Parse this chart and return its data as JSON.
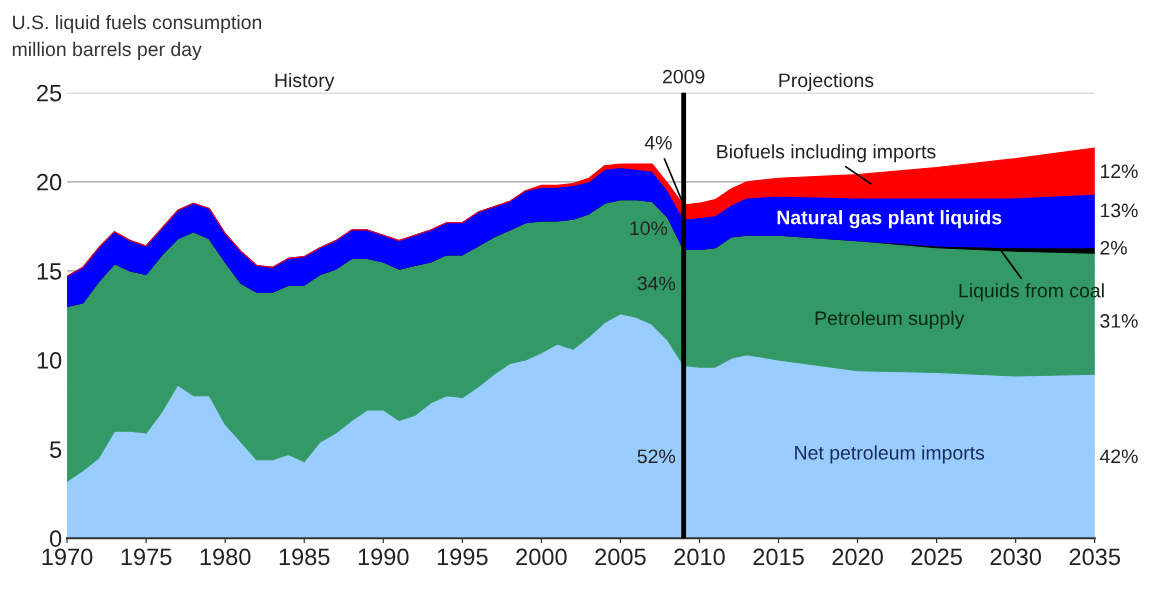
{
  "chart_data": {
    "type": "area",
    "stacked": true,
    "title": "U.S. liquid fuels consumption",
    "subtitle": "million barrels per day",
    "x": [
      1970,
      1971,
      1972,
      1973,
      1974,
      1975,
      1976,
      1977,
      1978,
      1979,
      1980,
      1981,
      1982,
      1983,
      1984,
      1985,
      1986,
      1987,
      1988,
      1989,
      1990,
      1991,
      1992,
      1993,
      1994,
      1995,
      1996,
      1997,
      1998,
      1999,
      2000,
      2001,
      2002,
      2003,
      2004,
      2005,
      2006,
      2007,
      2008,
      2009,
      2010,
      2011,
      2012,
      2013,
      2015,
      2020,
      2025,
      2030,
      2035
    ],
    "series": [
      {
        "name": "Net petroleum imports",
        "color": "#99ccff",
        "values": [
          3.2,
          3.8,
          4.5,
          6.0,
          6.0,
          5.9,
          7.1,
          8.6,
          8.0,
          8.0,
          6.4,
          5.4,
          4.4,
          4.4,
          4.7,
          4.3,
          5.4,
          5.9,
          6.6,
          7.2,
          7.2,
          6.6,
          6.9,
          7.6,
          8.0,
          7.9,
          8.5,
          9.2,
          9.8,
          10.0,
          10.4,
          10.9,
          10.6,
          11.3,
          12.1,
          12.6,
          12.4,
          12.0,
          11.1,
          9.7,
          9.6,
          9.6,
          10.1,
          10.3,
          10.0,
          9.4,
          9.3,
          9.1,
          9.2
        ]
      },
      {
        "name": "Petroleum supply",
        "color": "#339966",
        "values": [
          9.8,
          9.4,
          9.9,
          9.4,
          9.0,
          8.9,
          8.8,
          8.2,
          9.2,
          8.8,
          9.1,
          8.9,
          9.4,
          9.4,
          9.5,
          9.9,
          9.4,
          9.2,
          9.1,
          8.5,
          8.3,
          8.5,
          8.4,
          7.9,
          7.9,
          8.0,
          7.9,
          7.7,
          7.5,
          7.7,
          7.4,
          6.9,
          7.3,
          6.9,
          6.7,
          6.4,
          6.6,
          6.9,
          6.9,
          6.5,
          6.6,
          6.7,
          6.8,
          6.7,
          7.0,
          7.3,
          7.0,
          7.0,
          6.8
        ]
      },
      {
        "name": "Liquids from coal",
        "color": "#000000",
        "values": [
          0,
          0,
          0,
          0,
          0,
          0,
          0,
          0,
          0,
          0,
          0,
          0,
          0,
          0,
          0,
          0,
          0,
          0,
          0,
          0,
          0,
          0,
          0,
          0,
          0,
          0,
          0,
          0,
          0,
          0,
          0,
          0,
          0,
          0,
          0,
          0,
          0,
          0,
          0,
          0,
          0,
          0,
          0,
          0,
          0,
          0,
          0.1,
          0.2,
          0.3
        ]
      },
      {
        "name": "Natural gas plant liquids",
        "color": "#0000ff",
        "values": [
          1.7,
          2.0,
          1.9,
          1.8,
          1.7,
          1.6,
          1.5,
          1.6,
          1.6,
          1.7,
          1.6,
          1.8,
          1.5,
          1.4,
          1.5,
          1.6,
          1.5,
          1.6,
          1.6,
          1.6,
          1.5,
          1.6,
          1.7,
          1.8,
          1.8,
          1.8,
          1.9,
          1.7,
          1.6,
          1.8,
          1.9,
          1.9,
          1.9,
          1.8,
          1.9,
          1.8,
          1.7,
          1.7,
          1.5,
          1.7,
          1.8,
          1.8,
          1.8,
          2.1,
          2.2,
          2.4,
          2.7,
          2.8,
          3.0
        ]
      },
      {
        "name": "Biofuels including imports",
        "color": "#ff0000",
        "values": [
          0,
          0,
          0,
          0,
          0,
          0,
          0,
          0,
          0,
          0,
          0,
          0,
          0,
          0,
          0,
          0,
          0,
          0,
          0,
          0,
          0,
          0,
          0,
          0,
          0,
          0,
          0,
          0,
          0,
          0,
          0.1,
          0.1,
          0.1,
          0.2,
          0.2,
          0.2,
          0.3,
          0.4,
          0.4,
          0.8,
          0.8,
          0.9,
          0.9,
          0.9,
          1.0,
          1.3,
          1.7,
          2.2,
          2.6
        ]
      }
    ],
    "xlim": [
      1970,
      2035
    ],
    "xticks": [
      1970,
      1975,
      1980,
      1985,
      1990,
      1995,
      2000,
      2005,
      2010,
      2015,
      2020,
      2025,
      2030,
      2035
    ],
    "ylim": [
      0,
      25
    ],
    "yticks": [
      0,
      5,
      10,
      15,
      20,
      25
    ],
    "grid": "y",
    "ref_lines": [
      {
        "axis": "x",
        "value": 2009,
        "label": "2009",
        "color": "#000000"
      }
    ],
    "annotations": [
      "History",
      "Projections",
      "52%",
      "34%",
      "10%",
      {
        "text": "4%",
        "x": 2009,
        "y": 18.7
      },
      "42%",
      "31%",
      "2%",
      "13%",
      "12%"
    ]
  }
}
